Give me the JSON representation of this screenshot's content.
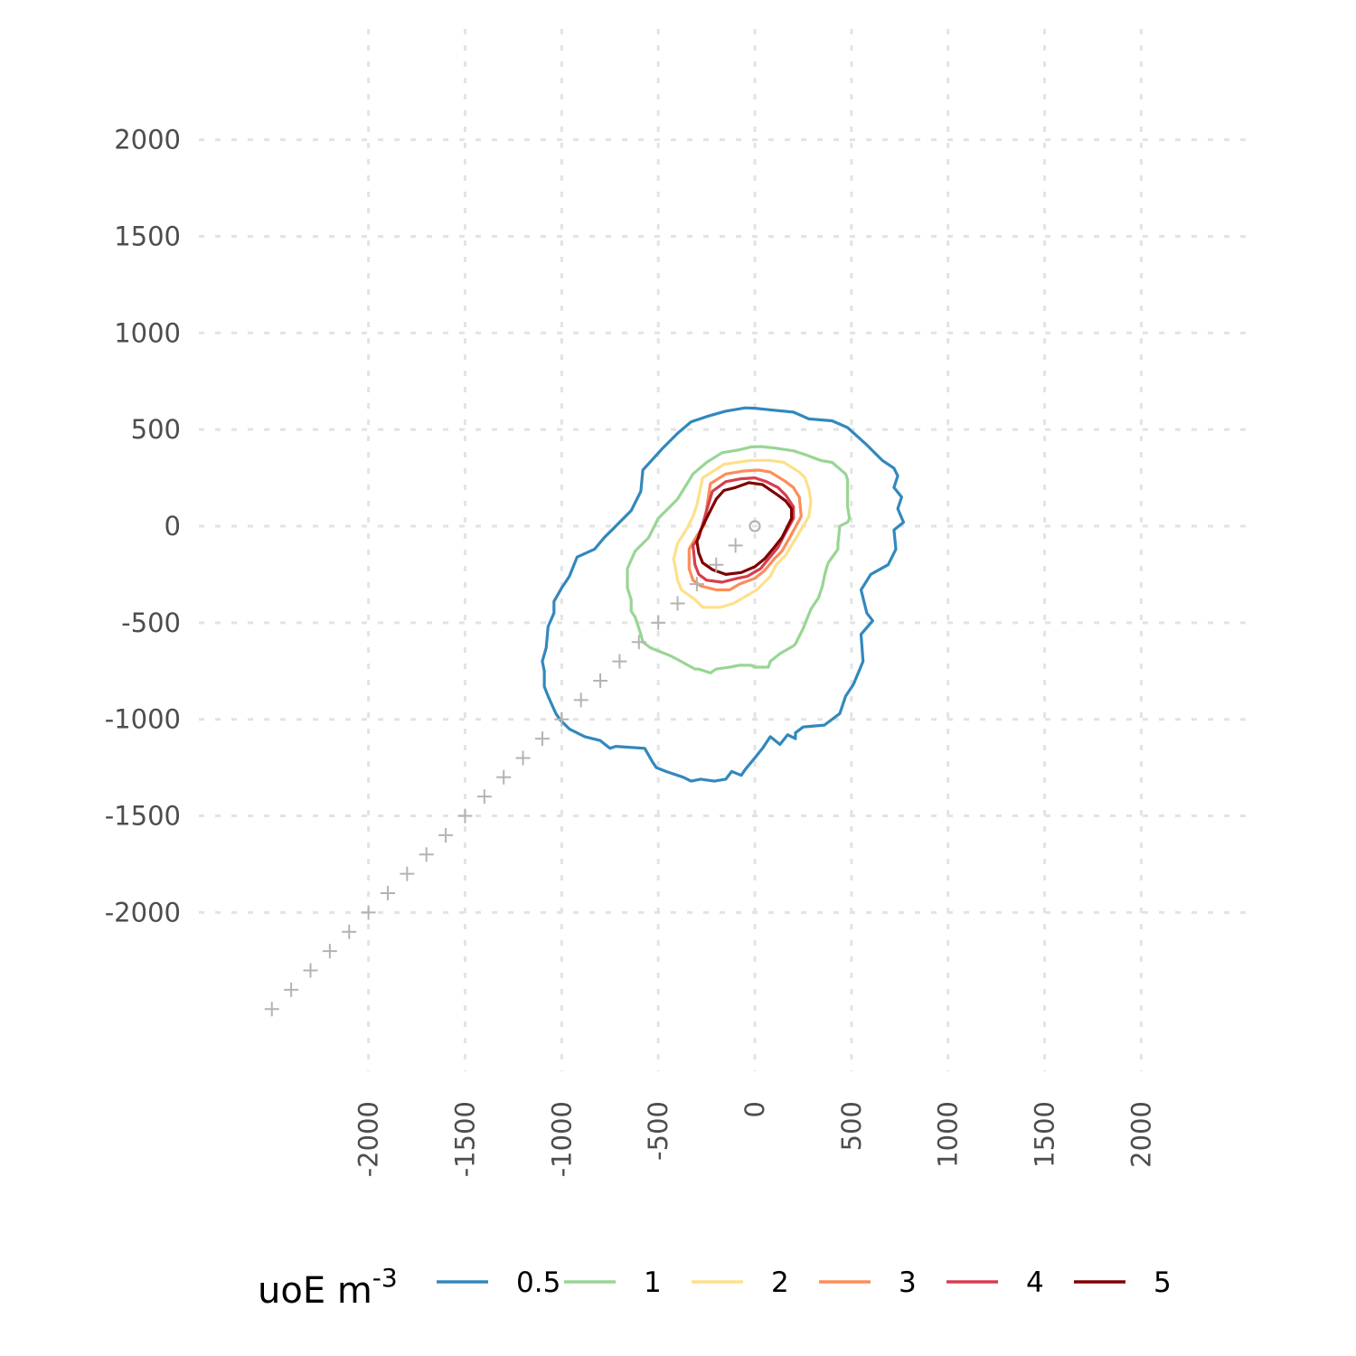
{
  "chart_data": {
    "type": "line",
    "title": "",
    "xlabel": "",
    "ylabel": "",
    "xlim": [
      -2500,
      2500
    ],
    "ylim": [
      -2500,
      2500
    ],
    "grid": true,
    "x_ticks": [
      "-2000",
      "-1500",
      "-1000",
      "-500",
      "0",
      "500",
      "1000",
      "1500",
      "2000"
    ],
    "y_ticks": [
      "2000",
      "1500",
      "1000",
      "500",
      "0",
      "-500",
      "-1000",
      "-1500",
      "-2000"
    ],
    "legend": {
      "position": "bottom",
      "title_main": "uoE m",
      "title_sup": "-3",
      "entries": [
        "0.5",
        "1",
        "2",
        "3",
        "4",
        "5"
      ]
    },
    "source": {
      "x": 0,
      "y": 0,
      "symbol": "circle"
    },
    "receptors": {
      "symbol": "plus",
      "points": [
        [
          -2500,
          -2500
        ],
        [
          -2400,
          -2400
        ],
        [
          -2300,
          -2300
        ],
        [
          -2200,
          -2200
        ],
        [
          -2100,
          -2100
        ],
        [
          -2000,
          -2000
        ],
        [
          -1900,
          -1900
        ],
        [
          -1800,
          -1800
        ],
        [
          -1700,
          -1700
        ],
        [
          -1600,
          -1600
        ],
        [
          -1500,
          -1500
        ],
        [
          -1400,
          -1400
        ],
        [
          -1300,
          -1300
        ],
        [
          -1200,
          -1200
        ],
        [
          -1100,
          -1100
        ],
        [
          -1000,
          -1000
        ],
        [
          -900,
          -900
        ],
        [
          -800,
          -800
        ],
        [
          -700,
          -700
        ],
        [
          -600,
          -600
        ],
        [
          -500,
          -500
        ],
        [
          -400,
          -400
        ],
        [
          -300,
          -300
        ],
        [
          -200,
          -200
        ],
        [
          -100,
          -100
        ]
      ]
    },
    "series": [
      {
        "name": "0.5",
        "color": "#3288bd",
        "points": [
          [
            -580,
            290
          ],
          [
            -480,
            400
          ],
          [
            -400,
            480
          ],
          [
            -330,
            540
          ],
          [
            -240,
            570
          ],
          [
            -150,
            595
          ],
          [
            -50,
            612
          ],
          [
            0,
            610
          ],
          [
            100,
            600
          ],
          [
            200,
            590
          ],
          [
            280,
            555
          ],
          [
            400,
            545
          ],
          [
            480,
            510
          ],
          [
            580,
            420
          ],
          [
            660,
            340
          ],
          [
            720,
            300
          ],
          [
            740,
            260
          ],
          [
            720,
            200
          ],
          [
            760,
            150
          ],
          [
            740,
            90
          ],
          [
            770,
            20
          ],
          [
            720,
            -20
          ],
          [
            730,
            -120
          ],
          [
            690,
            -200
          ],
          [
            600,
            -250
          ],
          [
            550,
            -330
          ],
          [
            580,
            -450
          ],
          [
            610,
            -490
          ],
          [
            550,
            -560
          ],
          [
            560,
            -700
          ],
          [
            510,
            -820
          ],
          [
            470,
            -880
          ],
          [
            440,
            -970
          ],
          [
            360,
            -1030
          ],
          [
            250,
            -1040
          ],
          [
            210,
            -1070
          ],
          [
            210,
            -1100
          ],
          [
            170,
            -1080
          ],
          [
            130,
            -1130
          ],
          [
            80,
            -1090
          ],
          [
            40,
            -1150
          ],
          [
            0,
            -1200
          ],
          [
            -50,
            -1260
          ],
          [
            -70,
            -1290
          ],
          [
            -120,
            -1270
          ],
          [
            -150,
            -1310
          ],
          [
            -210,
            -1320
          ],
          [
            -280,
            -1310
          ],
          [
            -330,
            -1320
          ],
          [
            -370,
            -1300
          ],
          [
            -460,
            -1270
          ],
          [
            -510,
            -1250
          ],
          [
            -530,
            -1220
          ],
          [
            -570,
            -1150
          ],
          [
            -720,
            -1140
          ],
          [
            -750,
            -1150
          ],
          [
            -800,
            -1110
          ],
          [
            -880,
            -1090
          ],
          [
            -960,
            -1050
          ],
          [
            -1010,
            -1000
          ],
          [
            -1030,
            -970
          ],
          [
            -1070,
            -880
          ],
          [
            -1090,
            -830
          ],
          [
            -1090,
            -750
          ],
          [
            -1100,
            -700
          ],
          [
            -1080,
            -630
          ],
          [
            -1070,
            -520
          ],
          [
            -1040,
            -450
          ],
          [
            -1040,
            -390
          ],
          [
            -1000,
            -320
          ],
          [
            -960,
            -260
          ],
          [
            -920,
            -160
          ],
          [
            -830,
            -120
          ],
          [
            -780,
            -60
          ],
          [
            -740,
            -20
          ],
          [
            -640,
            80
          ],
          [
            -590,
            180
          ],
          [
            -580,
            290
          ]
        ]
      },
      {
        "name": "1",
        "color": "#99d594",
        "points": [
          [
            -550,
            -60
          ],
          [
            -500,
            40
          ],
          [
            -400,
            140
          ],
          [
            -320,
            270
          ],
          [
            -250,
            330
          ],
          [
            -170,
            380
          ],
          [
            -80,
            395
          ],
          [
            -20,
            410
          ],
          [
            30,
            412
          ],
          [
            100,
            405
          ],
          [
            200,
            390
          ],
          [
            260,
            370
          ],
          [
            340,
            340
          ],
          [
            400,
            330
          ],
          [
            470,
            270
          ],
          [
            480,
            240
          ],
          [
            480,
            100
          ],
          [
            490,
            40
          ],
          [
            480,
            20
          ],
          [
            440,
            0
          ],
          [
            430,
            -90
          ],
          [
            430,
            -120
          ],
          [
            380,
            -190
          ],
          [
            370,
            -220
          ],
          [
            360,
            -260
          ],
          [
            350,
            -310
          ],
          [
            330,
            -370
          ],
          [
            290,
            -430
          ],
          [
            250,
            -530
          ],
          [
            220,
            -590
          ],
          [
            210,
            -610
          ],
          [
            200,
            -620
          ],
          [
            130,
            -660
          ],
          [
            80,
            -700
          ],
          [
            70,
            -730
          ],
          [
            0,
            -730
          ],
          [
            -20,
            -720
          ],
          [
            -80,
            -720
          ],
          [
            -130,
            -730
          ],
          [
            -200,
            -740
          ],
          [
            -230,
            -760
          ],
          [
            -290,
            -740
          ],
          [
            -310,
            -740
          ],
          [
            -400,
            -690
          ],
          [
            -440,
            -670
          ],
          [
            -540,
            -630
          ],
          [
            -580,
            -600
          ],
          [
            -590,
            -560
          ],
          [
            -620,
            -470
          ],
          [
            -640,
            -440
          ],
          [
            -640,
            -380
          ],
          [
            -660,
            -320
          ],
          [
            -660,
            -220
          ],
          [
            -620,
            -130
          ],
          [
            -550,
            -60
          ]
        ]
      },
      {
        "name": "2",
        "color": "#fee08b",
        "points": [
          [
            -270,
            250
          ],
          [
            -160,
            320
          ],
          [
            -20,
            340
          ],
          [
            80,
            340
          ],
          [
            150,
            330
          ],
          [
            230,
            280
          ],
          [
            260,
            250
          ],
          [
            280,
            190
          ],
          [
            290,
            130
          ],
          [
            280,
            50
          ],
          [
            220,
            -50
          ],
          [
            160,
            -150
          ],
          [
            110,
            -200
          ],
          [
            80,
            -260
          ],
          [
            10,
            -330
          ],
          [
            -110,
            -400
          ],
          [
            -180,
            -420
          ],
          [
            -270,
            -420
          ],
          [
            -310,
            -380
          ],
          [
            -380,
            -330
          ],
          [
            -400,
            -280
          ],
          [
            -410,
            -220
          ],
          [
            -420,
            -170
          ],
          [
            -400,
            -90
          ],
          [
            -350,
            -10
          ],
          [
            -320,
            50
          ],
          [
            -300,
            110
          ],
          [
            -270,
            250
          ]
        ]
      },
      {
        "name": "3",
        "color": "#fc8d59",
        "points": [
          [
            -230,
            220
          ],
          [
            -150,
            270
          ],
          [
            -60,
            285
          ],
          [
            20,
            290
          ],
          [
            80,
            280
          ],
          [
            160,
            230
          ],
          [
            200,
            200
          ],
          [
            230,
            150
          ],
          [
            240,
            50
          ],
          [
            180,
            -60
          ],
          [
            140,
            -130
          ],
          [
            100,
            -170
          ],
          [
            50,
            -230
          ],
          [
            0,
            -270
          ],
          [
            -80,
            -300
          ],
          [
            -130,
            -330
          ],
          [
            -200,
            -330
          ],
          [
            -280,
            -310
          ],
          [
            -320,
            -280
          ],
          [
            -340,
            -220
          ],
          [
            -340,
            -120
          ],
          [
            -300,
            -50
          ],
          [
            -260,
            10
          ],
          [
            -250,
            90
          ],
          [
            -230,
            220
          ]
        ]
      },
      {
        "name": "4",
        "color": "#d53e4f",
        "points": [
          [
            -220,
            180
          ],
          [
            -150,
            230
          ],
          [
            -70,
            245
          ],
          [
            0,
            250
          ],
          [
            60,
            230
          ],
          [
            120,
            200
          ],
          [
            160,
            160
          ],
          [
            200,
            100
          ],
          [
            200,
            40
          ],
          [
            150,
            -50
          ],
          [
            120,
            -110
          ],
          [
            70,
            -170
          ],
          [
            30,
            -220
          ],
          [
            -40,
            -260
          ],
          [
            -90,
            -270
          ],
          [
            -170,
            -290
          ],
          [
            -250,
            -280
          ],
          [
            -290,
            -250
          ],
          [
            -310,
            -200
          ],
          [
            -320,
            -100
          ],
          [
            -290,
            -60
          ],
          [
            -270,
            10
          ],
          [
            -250,
            80
          ],
          [
            -220,
            180
          ]
        ]
      },
      {
        "name": "5",
        "color": "#7f0000",
        "points": [
          [
            -200,
            140
          ],
          [
            -160,
            185
          ],
          [
            -100,
            200
          ],
          [
            -30,
            225
          ],
          [
            40,
            215
          ],
          [
            120,
            160
          ],
          [
            160,
            130
          ],
          [
            190,
            90
          ],
          [
            190,
            40
          ],
          [
            140,
            -60
          ],
          [
            100,
            -110
          ],
          [
            50,
            -170
          ],
          [
            0,
            -210
          ],
          [
            -70,
            -240
          ],
          [
            -150,
            -250
          ],
          [
            -220,
            -225
          ],
          [
            -270,
            -190
          ],
          [
            -290,
            -140
          ],
          [
            -300,
            -80
          ],
          [
            -280,
            -20
          ],
          [
            -260,
            20
          ],
          [
            -230,
            80
          ],
          [
            -200,
            140
          ]
        ]
      }
    ]
  }
}
